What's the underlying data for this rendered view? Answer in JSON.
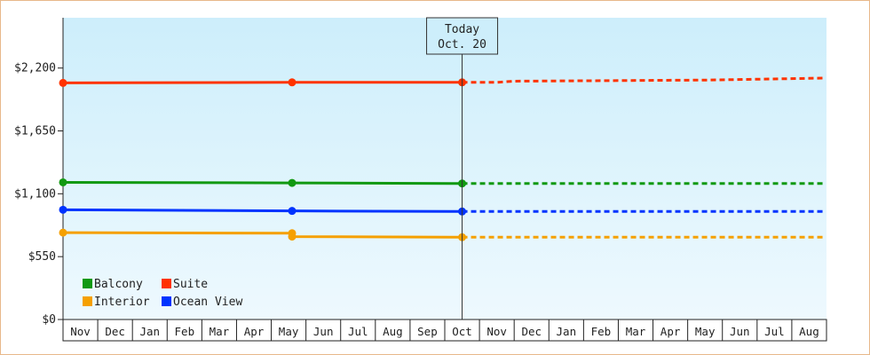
{
  "chart_data": {
    "type": "line",
    "title": "",
    "xlabel": "",
    "ylabel": "",
    "ylim": [
      0,
      2640
    ],
    "y_ticks": [
      0,
      550,
      1100,
      1650,
      2200
    ],
    "y_tick_labels": [
      "$0",
      "$550",
      "$1,100",
      "$1,650",
      "$2,200"
    ],
    "categories": [
      "Nov",
      "Dec",
      "Jan",
      "Feb",
      "Mar",
      "Apr",
      "May",
      "Jun",
      "Jul",
      "Aug",
      "Sep",
      "Oct",
      "Nov",
      "Dec",
      "Jan",
      "Feb",
      "Mar",
      "Apr",
      "May",
      "Jun",
      "Jul",
      "Aug"
    ],
    "today_marker": {
      "line1": "Today",
      "line2": "Oct. 20",
      "category_index": 11.5
    },
    "grid": false,
    "legend": {
      "placement": "bottom-left"
    },
    "series": [
      {
        "name": "Suite",
        "color": "#ff3300",
        "actual": [
          [
            0,
            2070
          ],
          [
            6.6,
            2075
          ],
          [
            11.5,
            2075
          ]
        ],
        "forecast": [
          [
            11.5,
            2075
          ],
          [
            12.5,
            2075
          ],
          [
            13,
            2085
          ],
          [
            18.6,
            2095
          ],
          [
            21.9,
            2112
          ]
        ]
      },
      {
        "name": "Balcony",
        "color": "#119911",
        "actual": [
          [
            0,
            1200
          ],
          [
            6.6,
            1195
          ],
          [
            11.5,
            1190
          ]
        ],
        "forecast": [
          [
            11.5,
            1190
          ],
          [
            21.9,
            1190
          ]
        ]
      },
      {
        "name": "Ocean View",
        "color": "#0033ff",
        "actual": [
          [
            0,
            960
          ],
          [
            6.6,
            950
          ],
          [
            11.5,
            945
          ]
        ],
        "forecast": [
          [
            11.5,
            945
          ],
          [
            21.9,
            945
          ]
        ]
      },
      {
        "name": "Interior",
        "color": "#f5a000",
        "actual": [
          [
            0,
            760
          ],
          [
            6.6,
            755
          ],
          [
            6.6,
            725
          ],
          [
            11.5,
            720
          ]
        ],
        "forecast": [
          [
            11.5,
            720
          ],
          [
            21.9,
            720
          ]
        ]
      }
    ],
    "dot_x": [
      0,
      6.6,
      11.5
    ],
    "legend_order": [
      "Balcony",
      "Suite",
      "Interior",
      "Ocean View"
    ]
  }
}
